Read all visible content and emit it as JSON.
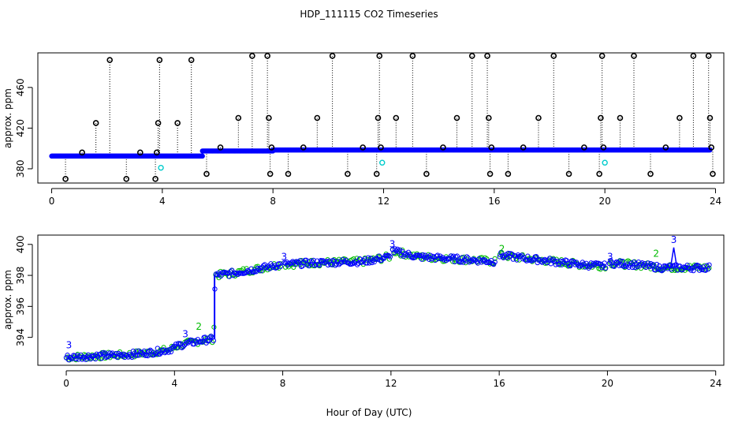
{
  "title": "HDP_111115  CO2 Timeseries",
  "xlabel": "Hour of Day (UTC)",
  "colors": {
    "frame": "#000000",
    "raw_points": "#000000",
    "flagged_points": "#00cccc",
    "filtered_points": "#0000ff",
    "alt_points": "#00bb00",
    "drop_lines": "#000000"
  },
  "chart_data": [
    {
      "type": "scatter",
      "panel": "top",
      "ylabel": "approx. ppm",
      "xlim": [
        -0.5,
        24.3
      ],
      "ylim": [
        366,
        494
      ],
      "x_ticks": [
        "0",
        "4",
        "8",
        "12",
        "16",
        "20",
        "24"
      ],
      "x_tick_values": [
        0,
        4,
        8,
        12,
        16,
        20,
        24
      ],
      "y_ticks": [
        "380",
        "420",
        "460"
      ],
      "y_tick_values": [
        380,
        420,
        460
      ],
      "baseline": {
        "description_free": true,
        "segments": [
          {
            "x0": 0.0,
            "x1": 5.45,
            "y": 392.5
          },
          {
            "x0": 5.45,
            "x1": 8.0,
            "y": 397.5
          },
          {
            "x0": 8.0,
            "x1": 23.8,
            "y": 398.5
          }
        ]
      },
      "outliers": [
        {
          "x": 0.5,
          "y": 370
        },
        {
          "x": 1.1,
          "y": 396
        },
        {
          "x": 1.6,
          "y": 425
        },
        {
          "x": 2.1,
          "y": 487
        },
        {
          "x": 2.7,
          "y": 370
        },
        {
          "x": 3.2,
          "y": 396
        },
        {
          "x": 3.75,
          "y": 370
        },
        {
          "x": 3.8,
          "y": 396
        },
        {
          "x": 3.85,
          "y": 425
        },
        {
          "x": 3.9,
          "y": 487
        },
        {
          "x": 4.55,
          "y": 425
        },
        {
          "x": 5.05,
          "y": 487
        },
        {
          "x": 5.6,
          "y": 375
        },
        {
          "x": 6.1,
          "y": 401
        },
        {
          "x": 6.75,
          "y": 430
        },
        {
          "x": 7.25,
          "y": 491
        },
        {
          "x": 7.8,
          "y": 491
        },
        {
          "x": 7.85,
          "y": 430
        },
        {
          "x": 7.9,
          "y": 375
        },
        {
          "x": 7.95,
          "y": 401
        },
        {
          "x": 8.55,
          "y": 375
        },
        {
          "x": 9.1,
          "y": 401
        },
        {
          "x": 9.6,
          "y": 430
        },
        {
          "x": 10.15,
          "y": 491
        },
        {
          "x": 10.7,
          "y": 375
        },
        {
          "x": 11.25,
          "y": 401
        },
        {
          "x": 11.75,
          "y": 375
        },
        {
          "x": 11.8,
          "y": 430
        },
        {
          "x": 11.85,
          "y": 491
        },
        {
          "x": 11.9,
          "y": 401
        },
        {
          "x": 12.45,
          "y": 430
        },
        {
          "x": 13.05,
          "y": 491
        },
        {
          "x": 13.55,
          "y": 375
        },
        {
          "x": 14.15,
          "y": 401
        },
        {
          "x": 14.65,
          "y": 430
        },
        {
          "x": 15.2,
          "y": 491
        },
        {
          "x": 15.75,
          "y": 491
        },
        {
          "x": 15.8,
          "y": 430
        },
        {
          "x": 15.85,
          "y": 375
        },
        {
          "x": 15.9,
          "y": 401
        },
        {
          "x": 16.5,
          "y": 375
        },
        {
          "x": 17.05,
          "y": 401
        },
        {
          "x": 17.6,
          "y": 430
        },
        {
          "x": 18.15,
          "y": 491
        },
        {
          "x": 18.7,
          "y": 375
        },
        {
          "x": 19.25,
          "y": 401
        },
        {
          "x": 19.8,
          "y": 375
        },
        {
          "x": 19.85,
          "y": 430
        },
        {
          "x": 19.9,
          "y": 491
        },
        {
          "x": 19.95,
          "y": 401
        },
        {
          "x": 20.55,
          "y": 430
        },
        {
          "x": 21.05,
          "y": 491
        },
        {
          "x": 21.65,
          "y": 375
        },
        {
          "x": 22.2,
          "y": 401
        },
        {
          "x": 22.7,
          "y": 430
        },
        {
          "x": 23.2,
          "y": 491
        },
        {
          "x": 23.75,
          "y": 491
        },
        {
          "x": 23.8,
          "y": 430
        },
        {
          "x": 23.85,
          "y": 401
        },
        {
          "x": 23.9,
          "y": 375
        }
      ],
      "flagged": [
        {
          "x": 3.95,
          "y": 381
        },
        {
          "x": 11.95,
          "y": 386
        },
        {
          "x": 20.0,
          "y": 386
        }
      ]
    },
    {
      "type": "scatter",
      "panel": "bottom",
      "ylabel": "approx. ppm",
      "xlim": [
        -1.05,
        24.3
      ],
      "ylim": [
        392.2,
        400.6
      ],
      "x_ticks": [
        "0",
        "4",
        "8",
        "12",
        "16",
        "20",
        "24"
      ],
      "x_tick_values": [
        0,
        4,
        8,
        12,
        16,
        20,
        24
      ],
      "y_ticks": [
        "394",
        "396",
        "398",
        "400"
      ],
      "y_tick_values": [
        394,
        396,
        398,
        400
      ],
      "trend": [
        {
          "x": 0.0,
          "y": 392.7
        },
        {
          "x": 1.0,
          "y": 392.8
        },
        {
          "x": 2.0,
          "y": 392.85
        },
        {
          "x": 3.0,
          "y": 393.0
        },
        {
          "x": 3.8,
          "y": 393.2
        },
        {
          "x": 4.2,
          "y": 393.5
        },
        {
          "x": 5.0,
          "y": 393.8
        },
        {
          "x": 5.45,
          "y": 393.9
        },
        {
          "x": 5.5,
          "y": 398.0
        },
        {
          "x": 6.0,
          "y": 398.1
        },
        {
          "x": 7.0,
          "y": 398.4
        },
        {
          "x": 7.9,
          "y": 398.7
        },
        {
          "x": 8.0,
          "y": 398.7
        },
        {
          "x": 9.0,
          "y": 398.8
        },
        {
          "x": 10.0,
          "y": 398.85
        },
        {
          "x": 11.0,
          "y": 398.9
        },
        {
          "x": 11.95,
          "y": 399.2
        },
        {
          "x": 12.0,
          "y": 399.6
        },
        {
          "x": 13.0,
          "y": 399.2
        },
        {
          "x": 14.0,
          "y": 399.1
        },
        {
          "x": 15.0,
          "y": 399.0
        },
        {
          "x": 15.8,
          "y": 398.9
        },
        {
          "x": 16.0,
          "y": 399.3
        },
        {
          "x": 17.0,
          "y": 399.1
        },
        {
          "x": 18.0,
          "y": 398.9
        },
        {
          "x": 19.0,
          "y": 398.7
        },
        {
          "x": 19.9,
          "y": 398.6
        },
        {
          "x": 20.0,
          "y": 398.8
        },
        {
          "x": 21.0,
          "y": 398.7
        },
        {
          "x": 22.0,
          "y": 398.5
        },
        {
          "x": 23.0,
          "y": 398.5
        },
        {
          "x": 23.8,
          "y": 398.5
        }
      ],
      "gaps": [
        [
          7.95,
          8.05
        ],
        [
          11.97,
          12.03
        ],
        [
          15.85,
          16.0
        ],
        [
          19.95,
          20.05
        ]
      ],
      "labels": [
        {
          "text": "3",
          "x": 0.1,
          "y": 393.3,
          "color": "blue"
        },
        {
          "text": "2",
          "x": 4.9,
          "y": 394.5,
          "color": "green"
        },
        {
          "text": "3",
          "x": 4.4,
          "y": 394.0,
          "color": "blue"
        },
        {
          "text": "3",
          "x": 8.05,
          "y": 399.0,
          "color": "blue"
        },
        {
          "text": "3",
          "x": 12.05,
          "y": 399.8,
          "color": "blue"
        },
        {
          "text": "2",
          "x": 16.1,
          "y": 399.5,
          "color": "green"
        },
        {
          "text": "3",
          "x": 20.1,
          "y": 399.0,
          "color": "blue"
        },
        {
          "text": "2",
          "x": 21.8,
          "y": 399.2,
          "color": "green"
        },
        {
          "text": "3",
          "x": 22.45,
          "y": 400.1,
          "color": "blue"
        }
      ],
      "spike": {
        "x0": 22.35,
        "x1": 22.55,
        "y": 399.8
      }
    }
  ]
}
